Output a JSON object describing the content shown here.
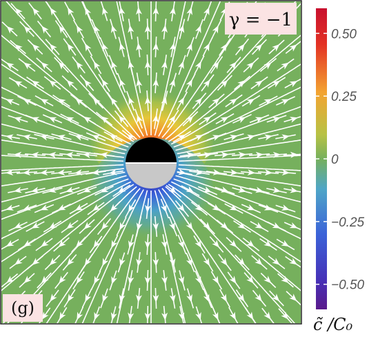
{
  "chart_data": {
    "type": "heatmap",
    "title": "",
    "subtitle": "",
    "panel_label": "(g)",
    "parameter_label": "γ = −1",
    "colorbar": {
      "label": "c̃ /C₀",
      "range": [
        -0.6,
        0.6
      ],
      "ticks": [
        0.5,
        0.25,
        0,
        -0.25,
        -0.5
      ],
      "tick_labels": [
        "0.50",
        "0.25",
        "0",
        "−0.25",
        "−0.50"
      ],
      "colormap": [
        "#4b1a8c",
        "#3b4fd8",
        "#4fa6c7",
        "#76b05d",
        "#b7c245",
        "#f3a431",
        "#e33224",
        "#c8102e"
      ]
    },
    "field": {
      "background_color": "#76b05d",
      "particle": {
        "top_half_color": "#000000",
        "bottom_half_color": "#c8c8c8",
        "edge_color": "#ffffff"
      },
      "positive_lobe": "above particle",
      "negative_lobe": "below particle",
      "streamline_color": "#ffffff",
      "flow_direction": "radially outward from particle"
    }
  }
}
